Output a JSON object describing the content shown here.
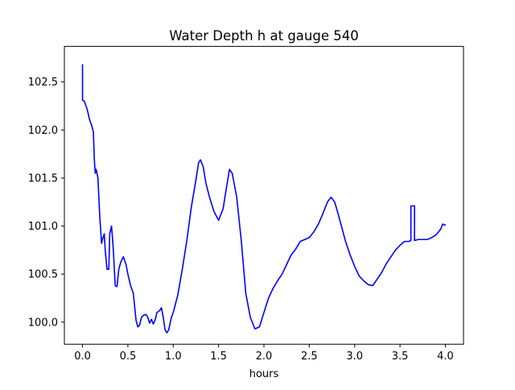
{
  "chart_data": {
    "type": "line",
    "title": "Water Depth h at gauge 540",
    "xlabel": "hours",
    "ylabel": "",
    "xlim": [
      -0.2,
      4.2
    ],
    "ylim": [
      99.77,
      102.87
    ],
    "x_ticks": [
      0.0,
      0.5,
      1.0,
      1.5,
      2.0,
      2.5,
      3.0,
      3.5,
      4.0
    ],
    "x_tick_labels": [
      "0.0",
      "0.5",
      "1.0",
      "1.5",
      "2.0",
      "2.5",
      "3.0",
      "3.5",
      "4.0"
    ],
    "y_ticks": [
      100.0,
      100.5,
      101.0,
      101.5,
      102.0,
      102.5
    ],
    "y_tick_labels": [
      "100.0",
      "100.5",
      "101.0",
      "101.5",
      "102.0",
      "102.5"
    ],
    "grid": false,
    "legend": "none",
    "series": [
      {
        "color": "#0000ff",
        "x": [
          0.0,
          0.0,
          0.02,
          0.05,
          0.08,
          0.1,
          0.12,
          0.13,
          0.14,
          0.15,
          0.17,
          0.19,
          0.21,
          0.22,
          0.24,
          0.25,
          0.27,
          0.29,
          0.3,
          0.32,
          0.34,
          0.36,
          0.38,
          0.4,
          0.42,
          0.45,
          0.48,
          0.5,
          0.53,
          0.56,
          0.59,
          0.61,
          0.63,
          0.65,
          0.67,
          0.7,
          0.72,
          0.74,
          0.76,
          0.78,
          0.8,
          0.82,
          0.85,
          0.87,
          0.89,
          0.91,
          0.93,
          0.95,
          0.98,
          1.0,
          1.05,
          1.1,
          1.15,
          1.2,
          1.25,
          1.28,
          1.3,
          1.33,
          1.36,
          1.4,
          1.45,
          1.5,
          1.55,
          1.59,
          1.62,
          1.65,
          1.7,
          1.75,
          1.8,
          1.85,
          1.9,
          1.95,
          2.0,
          2.05,
          2.1,
          2.15,
          2.2,
          2.25,
          2.3,
          2.35,
          2.4,
          2.45,
          2.5,
          2.55,
          2.6,
          2.65,
          2.7,
          2.74,
          2.78,
          2.82,
          2.86,
          2.9,
          2.95,
          3.0,
          3.05,
          3.1,
          3.15,
          3.2,
          3.25,
          3.3,
          3.35,
          3.4,
          3.45,
          3.5,
          3.55,
          3.6,
          3.62,
          3.62,
          3.64,
          3.66,
          3.66,
          3.7,
          3.75,
          3.8,
          3.85,
          3.9,
          3.95,
          3.97,
          4.0
        ],
        "values": [
          102.68,
          102.31,
          102.3,
          102.22,
          102.1,
          102.05,
          101.98,
          101.7,
          101.55,
          101.59,
          101.5,
          101.1,
          100.82,
          100.86,
          100.92,
          100.75,
          100.55,
          100.55,
          100.92,
          101.0,
          100.75,
          100.38,
          100.37,
          100.55,
          100.62,
          100.68,
          100.6,
          100.5,
          100.38,
          100.3,
          100.02,
          99.95,
          99.97,
          100.05,
          100.07,
          100.08,
          100.05,
          99.99,
          100.03,
          99.98,
          100.02,
          100.1,
          100.12,
          100.15,
          100.05,
          99.92,
          99.89,
          99.92,
          100.05,
          100.1,
          100.28,
          100.55,
          100.85,
          101.2,
          101.48,
          101.66,
          101.69,
          101.62,
          101.45,
          101.3,
          101.15,
          101.06,
          101.18,
          101.42,
          101.59,
          101.55,
          101.3,
          100.85,
          100.3,
          100.05,
          99.93,
          99.95,
          100.1,
          100.25,
          100.35,
          100.43,
          100.5,
          100.6,
          100.7,
          100.76,
          100.84,
          100.86,
          100.88,
          100.94,
          101.02,
          101.13,
          101.25,
          101.3,
          101.25,
          101.12,
          100.98,
          100.84,
          100.7,
          100.58,
          100.48,
          100.43,
          100.39,
          100.38,
          100.45,
          100.52,
          100.61,
          100.68,
          100.75,
          100.8,
          100.84,
          100.84,
          100.85,
          101.21,
          101.21,
          101.21,
          100.85,
          100.86,
          100.86,
          100.86,
          100.88,
          100.91,
          100.97,
          101.02,
          101.01
        ]
      }
    ]
  }
}
